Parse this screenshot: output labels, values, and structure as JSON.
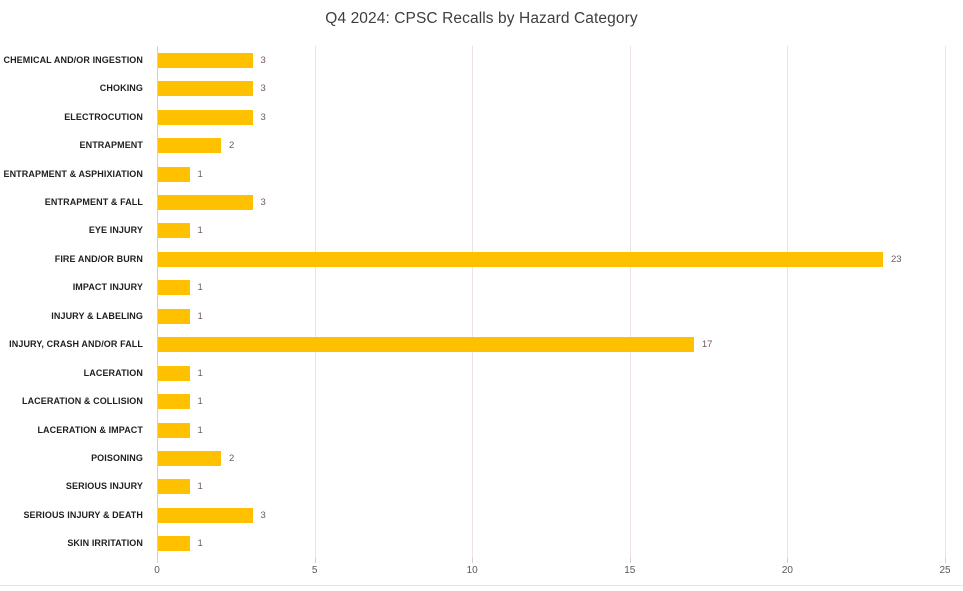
{
  "title": "Q4 2024: CPSC Recalls by Hazard Category",
  "chart_data": {
    "type": "bar",
    "orientation": "horizontal",
    "title": "Q4 2024: CPSC Recalls by Hazard Category",
    "categories": [
      "CHEMICAL AND/OR INGESTION",
      "CHOKING",
      "ELECTROCUTION",
      "ENTRAPMENT",
      "ENTRAPMENT & ASPHIXIATION",
      "ENTRAPMENT & FALL",
      "EYE INJURY",
      "FIRE AND/OR BURN",
      "IMPACT INJURY",
      "INJURY & LABELING",
      "INJURY, CRASH AND/OR FALL",
      "LACERATION",
      "LACERATION & COLLISION",
      "LACERATION & IMPACT",
      "POISONING",
      "SERIOUS INJURY",
      "SERIOUS INJURY & DEATH",
      "SKIN IRRITATION"
    ],
    "values": [
      3,
      3,
      3,
      2,
      1,
      3,
      1,
      23,
      1,
      1,
      17,
      1,
      1,
      1,
      2,
      1,
      3,
      1
    ],
    "xlabel": "",
    "ylabel": "",
    "xlim": [
      0,
      25
    ],
    "x_ticks": [
      0,
      5,
      10,
      15,
      20,
      25
    ],
    "grid": true,
    "data_labels": true,
    "legend": false
  },
  "style": {
    "bar_color": "#FFC000",
    "gridline_color": "#ece2e7",
    "axis_line_color": "#d9ccd3",
    "value_label_color": "#6e5a5e",
    "category_label_color": "#1f1f1f",
    "tick_label_color": "#595959",
    "title_color": "#3f3f3f",
    "background_color": "#ffffff"
  }
}
